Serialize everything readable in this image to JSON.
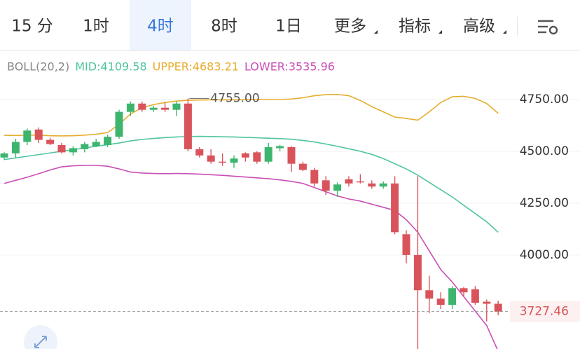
{
  "tabs": [
    "15 分",
    "1时",
    "4时",
    "8时",
    "1日",
    "更多",
    "指标",
    "高级"
  ],
  "active_tab": 2,
  "chart_data": {
    "type": "candlestick",
    "indicator": {
      "label": "BOLL(20,2)",
      "items": [
        {
          "text": "MID:4109.58",
          "color": "#4fc4a0"
        },
        {
          "text": "UPPER:4683.21",
          "color": "#e6ad2e"
        },
        {
          "text": "LOWER:3535.96",
          "color": "#c94fb4"
        }
      ]
    },
    "up_color": "#3db56f",
    "down_color": "#d9545a",
    "open": [
      4470,
      4490,
      4545,
      4605,
      4555,
      4530,
      4495,
      4510,
      4525,
      4530,
      4570,
      4690,
      4730,
      4700,
      4710,
      4700,
      4730,
      4510,
      4480,
      4450,
      4445,
      4490,
      4495,
      4450,
      4515,
      4520,
      4440,
      4410,
      4360,
      4310,
      4365,
      4355,
      4345,
      4330,
      4345,
      4100,
      4000,
      3830,
      3790,
      3760,
      3840,
      3835,
      3775,
      3765
    ],
    "high": [
      4495,
      4560,
      4610,
      4615,
      4565,
      4540,
      4525,
      4545,
      4560,
      4580,
      4700,
      4740,
      4740,
      4720,
      4735,
      4740,
      4755,
      4520,
      4510,
      4490,
      4480,
      4495,
      4500,
      4540,
      4530,
      4525,
      4450,
      4420,
      4380,
      4350,
      4380,
      4390,
      4360,
      4355,
      4380,
      4120,
      4380,
      3900,
      3820,
      3850,
      3845,
      3850,
      3785,
      3780
    ],
    "low": [
      4460,
      4470,
      4530,
      4540,
      4530,
      4490,
      4480,
      4495,
      4520,
      4520,
      4560,
      4670,
      4690,
      4690,
      4690,
      4670,
      4500,
      4470,
      4440,
      4430,
      4420,
      4450,
      4440,
      4440,
      4500,
      4400,
      4405,
      4330,
      4290,
      4280,
      4330,
      4345,
      4320,
      4320,
      4100,
      3960,
      3540,
      3720,
      3740,
      3740,
      3800,
      3760,
      3680,
      3710
    ],
    "close": [
      4490,
      4545,
      4600,
      4555,
      4535,
      4495,
      4515,
      4535,
      4545,
      4570,
      4690,
      4730,
      4700,
      4710,
      4700,
      4730,
      4510,
      4480,
      4450,
      4445,
      4465,
      4470,
      4450,
      4520,
      4525,
      4440,
      4410,
      4345,
      4310,
      4340,
      4345,
      4350,
      4330,
      4345,
      4110,
      4000,
      3830,
      3790,
      3760,
      3840,
      3820,
      3770,
      3765,
      3727.46
    ],
    "lines": [
      {
        "name": "UPPER",
        "color": "#e6ad2e",
        "values": [
          4577,
          4576,
          4578,
          4578,
          4575,
          4574,
          4575,
          4578,
          4582,
          4590,
          4630,
          4680,
          4710,
          4725,
          4735,
          4742,
          4746,
          4747,
          4748,
          4748,
          4748,
          4749,
          4749,
          4750,
          4750,
          4752,
          4758,
          4768,
          4773,
          4774,
          4768,
          4745,
          4715,
          4690,
          4665,
          4658,
          4650,
          4690,
          4735,
          4763,
          4765,
          4755,
          4730,
          4683.21
        ]
      },
      {
        "name": "MID",
        "color": "#4fc4a0",
        "values": [
          4460,
          4468,
          4476,
          4484,
          4492,
          4500,
          4508,
          4516,
          4524,
          4532,
          4540,
          4550,
          4557,
          4562,
          4566,
          4569,
          4571,
          4572,
          4571,
          4570,
          4569,
          4567,
          4565,
          4563,
          4561,
          4558,
          4552,
          4545,
          4535,
          4524,
          4512,
          4500,
          4485,
          4465,
          4440,
          4415,
          4385,
          4350,
          4315,
          4280,
          4240,
          4200,
          4160,
          4109.58
        ]
      },
      {
        "name": "LOWER",
        "color": "#c94fb4",
        "values": [
          4345,
          4360,
          4375,
          4392,
          4410,
          4425,
          4430,
          4432,
          4432,
          4428,
          4415,
          4400,
          4395,
          4393,
          4392,
          4393,
          4392,
          4390,
          4387,
          4384,
          4380,
          4376,
          4372,
          4368,
          4362,
          4355,
          4345,
          4325,
          4305,
          4285,
          4270,
          4260,
          4245,
          4230,
          4215,
          4170,
          4110,
          4020,
          3930,
          3870,
          3800,
          3730,
          3660,
          3535.96
        ]
      }
    ],
    "ylim": [
      3547,
      4986
    ],
    "yticks": [
      {
        "value": 4000,
        "label": "4000.00"
      },
      {
        "value": 4250,
        "label": "4250.00"
      },
      {
        "value": 4500,
        "label": "4500.00"
      },
      {
        "value": 4750,
        "label": "4750.00"
      }
    ],
    "grid": true,
    "high_marker": {
      "value": 4755,
      "label": "4755.00",
      "index": 16
    },
    "last_price": 3727.46
  }
}
